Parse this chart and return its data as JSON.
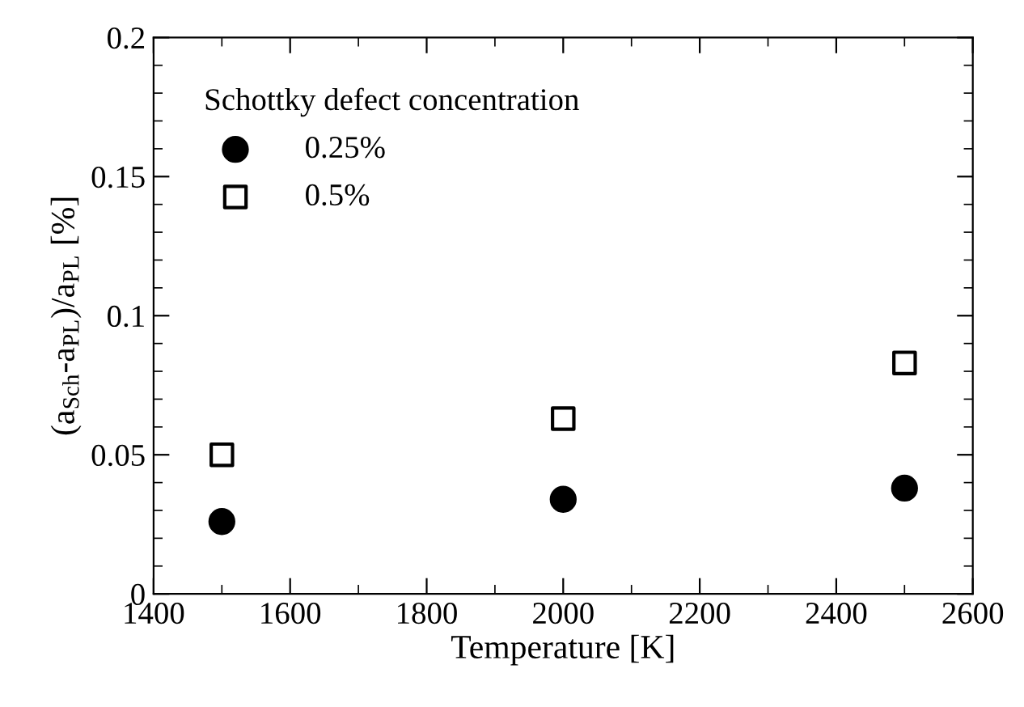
{
  "chart_data": {
    "type": "scatter",
    "xlabel": "Temperature [K]",
    "ylabel": "(a$_{Sch}$-a$_{PL}$)/a$_{PL}$ [%]",
    "legend_title": "Schottky defect concentration",
    "x": [
      1500,
      2000,
      2500
    ],
    "series": [
      {
        "name": "0.25%",
        "color": "#000000",
        "marker": "circle",
        "values": [
          0.026,
          0.034,
          0.038
        ]
      },
      {
        "name": "0.5%",
        "color": "#000000",
        "marker": "square",
        "values": [
          0.05,
          0.063,
          0.083
        ]
      }
    ],
    "xlim": [
      1400,
      2600
    ],
    "xticks": [
      1400,
      1600,
      1800,
      2000,
      2200,
      2400,
      2600
    ],
    "ylim": [
      0,
      0.2
    ],
    "yticks": [
      0,
      0.05,
      0.1,
      0.15,
      0.2
    ],
    "grid": false,
    "legend": "top left"
  }
}
